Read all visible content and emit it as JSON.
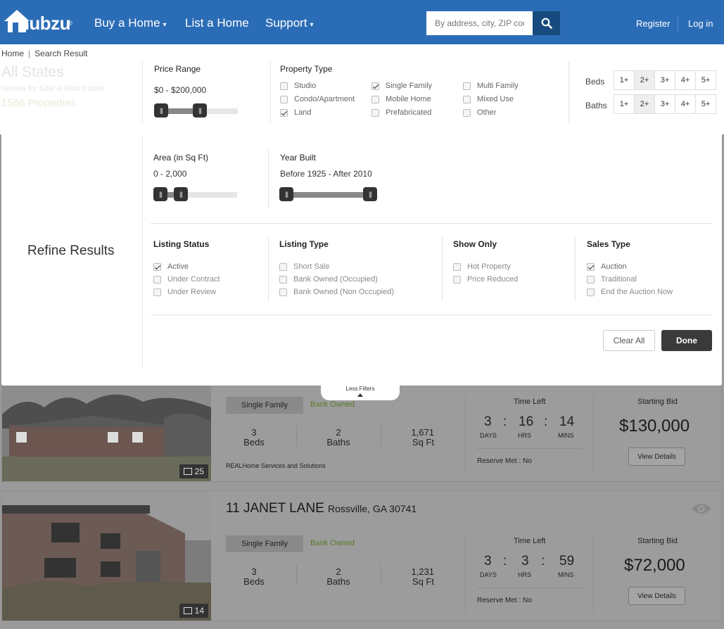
{
  "nav": {
    "logo_text": "hubzu",
    "items": [
      {
        "label": "Buy a Home",
        "caret": "▾"
      },
      {
        "label": "List a Home"
      },
      {
        "label": "Support",
        "caret": "▾"
      }
    ],
    "search_placeholder": "By address, city, ZIP code",
    "register": "Register",
    "login": "Log in"
  },
  "breadcrumb": {
    "home": "Home",
    "current": "Search Result",
    "separator": "|"
  },
  "header": {
    "title": "All States",
    "subtitle": "Homes for Sale & Real Estate",
    "count": "1566 Properties"
  },
  "filters": {
    "price_range": {
      "label": "Price Range",
      "value": "$0 - $200,000",
      "low": 0,
      "high": 0.4
    },
    "property_type": {
      "label": "Property Type",
      "options": [
        {
          "label": "Studio",
          "checked": false
        },
        {
          "label": "Condo/Apartment",
          "checked": false
        },
        {
          "label": "Land",
          "checked": true
        },
        {
          "label": "Single Family",
          "checked": true
        },
        {
          "label": "Mobile Home",
          "checked": false
        },
        {
          "label": "Prefabricated",
          "checked": false
        },
        {
          "label": "Multi Family",
          "checked": false
        },
        {
          "label": "Mixed Use",
          "checked": false
        },
        {
          "label": "Other",
          "checked": false
        }
      ]
    },
    "beds": {
      "label": "Beds",
      "options": [
        "1+",
        "2+",
        "3+",
        "4+",
        "5+"
      ],
      "selected": "2+"
    },
    "baths": {
      "label": "Baths",
      "options": [
        "1+",
        "2+",
        "3+",
        "4+",
        "5+"
      ],
      "selected": "2+"
    },
    "area": {
      "label": "Area (in Sq Ft)",
      "value": "0 - 2,000"
    },
    "year_built": {
      "label": "Year Built",
      "value": "Before 1925 - After 2010"
    },
    "refine_label": "Refine Results",
    "listing_status": {
      "label": "Listing Status",
      "options": [
        {
          "label": "Active",
          "checked": true
        },
        {
          "label": "Under Contract",
          "checked": false
        },
        {
          "label": "Under Review",
          "checked": false
        }
      ]
    },
    "listing_type": {
      "label": "Listing Type",
      "options": [
        {
          "label": "Short Sale",
          "checked": false
        },
        {
          "label": "Bank Owned (Occupied)",
          "checked": false
        },
        {
          "label": "Bank Owned (Non Occupied)",
          "checked": false
        }
      ]
    },
    "show_only": {
      "label": "Show Only",
      "options": [
        {
          "label": "Hot Property",
          "checked": false
        },
        {
          "label": "Price Reduced",
          "checked": false
        }
      ]
    },
    "sales_type": {
      "label": "Sales Type",
      "options": [
        {
          "label": "Auction",
          "checked": true
        },
        {
          "label": "Traditional",
          "checked": false
        },
        {
          "label": "End the Auction Now",
          "checked": false
        }
      ]
    },
    "clear_all": "Clear All",
    "done": "Done",
    "less_filters": "Less Filters"
  },
  "listings": [
    {
      "type_tag": "Single Family",
      "owner_tag": "Bank Owned",
      "beds": "3",
      "beds_label": "Beds",
      "baths": "2",
      "baths_label": "Baths",
      "sqft": "1,671",
      "sqft_label": "Sq Ft",
      "agent": "REALHome Services and Solutions",
      "time_left_label": "Time Left",
      "days": "3",
      "hrs": "16",
      "mins": "14",
      "days_label": "DAYS",
      "hrs_label": "HRS",
      "mins_label": "MINS",
      "reserve": "Reserve Met : No",
      "starting_bid_label": "Starting Bid",
      "price": "$130,000",
      "view_details": "View Details",
      "photo_count": "25"
    },
    {
      "address": "11 JANET LANE",
      "city": "Rossville, GA 30741",
      "type_tag": "Single Family",
      "owner_tag": "Bank Owned",
      "beds": "3",
      "beds_label": "Beds",
      "baths": "2",
      "baths_label": "Baths",
      "sqft": "1,231",
      "sqft_label": "Sq Ft",
      "time_left_label": "Time Left",
      "days": "3",
      "hrs": "3",
      "mins": "59",
      "days_label": "DAYS",
      "hrs_label": "HRS",
      "mins_label": "MINS",
      "reserve": "Reserve Met : No",
      "starting_bid_label": "Starting Bid",
      "price": "$72,000",
      "view_details": "View Details",
      "photo_count": "14"
    }
  ],
  "colors": {
    "nav": "#2b6cb6",
    "search_btn": "#174a7e",
    "done": "#3a3a3a"
  }
}
